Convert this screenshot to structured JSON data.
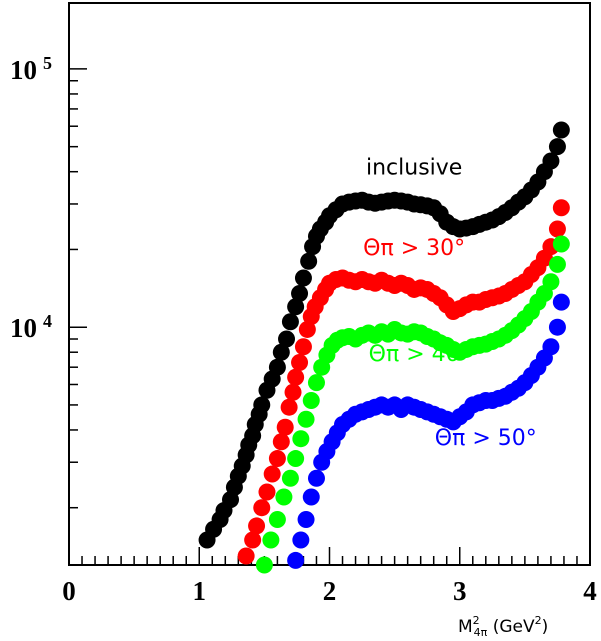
{
  "chart_data": {
    "type": "scatter",
    "xlim": [
      0,
      4
    ],
    "ylim": [
      1200,
      180000
    ],
    "yscale": "log",
    "x_ticks": [
      0,
      1,
      2,
      3,
      4
    ],
    "y_tick_labels": [
      {
        "value": 10000,
        "base": "10",
        "exp": "4"
      },
      {
        "value": 100000,
        "base": "10",
        "exp": "5"
      }
    ],
    "xlabel": {
      "base": "M",
      "sup": "2",
      "sub": "4π",
      "unit": "(GeV",
      "unit_sup": "2",
      "unit_close": ")"
    },
    "grid": false,
    "series": [
      {
        "name": "inclusive",
        "color": "#000000",
        "label_color": "#000000",
        "x": [
          1.06,
          1.11,
          1.16,
          1.19,
          1.24,
          1.27,
          1.3,
          1.33,
          1.36,
          1.38,
          1.41,
          1.43,
          1.46,
          1.48,
          1.52,
          1.56,
          1.6,
          1.63,
          1.67,
          1.7,
          1.74,
          1.77,
          1.8,
          1.84,
          1.87,
          1.9,
          1.93,
          1.97,
          2.0,
          2.05,
          2.1,
          2.15,
          2.2,
          2.25,
          2.3,
          2.35,
          2.4,
          2.45,
          2.5,
          2.55,
          2.6,
          2.65,
          2.7,
          2.75,
          2.8,
          2.85,
          2.9,
          2.95,
          3.0,
          3.05,
          3.1,
          3.15,
          3.2,
          3.25,
          3.3,
          3.35,
          3.4,
          3.45,
          3.5,
          3.55,
          3.6,
          3.65,
          3.7,
          3.75,
          3.78
        ],
        "y": [
          1500,
          1650,
          1800,
          1950,
          2150,
          2400,
          2650,
          2900,
          3200,
          3500,
          3800,
          4200,
          4600,
          5000,
          5700,
          6300,
          7000,
          8000,
          9000,
          10500,
          12000,
          13500,
          15500,
          18000,
          20500,
          22500,
          24000,
          25500,
          27000,
          28500,
          30000,
          30500,
          30800,
          31000,
          30500,
          30200,
          30500,
          30800,
          31000,
          30800,
          30500,
          30000,
          29800,
          29500,
          29000,
          27500,
          25500,
          24500,
          24000,
          24200,
          24500,
          25000,
          25500,
          26000,
          26800,
          27800,
          29000,
          30500,
          32000,
          34000,
          36500,
          40000,
          44000,
          50000,
          58000
        ]
      },
      {
        "name": "Θπ > 30°",
        "color": "#ff0000",
        "label_color": "#ff0000",
        "x": [
          1.36,
          1.41,
          1.44,
          1.48,
          1.52,
          1.56,
          1.6,
          1.63,
          1.66,
          1.69,
          1.72,
          1.74,
          1.77,
          1.8,
          1.83,
          1.86,
          1.89,
          1.93,
          1.97,
          2.0,
          2.05,
          2.1,
          2.15,
          2.2,
          2.25,
          2.3,
          2.35,
          2.4,
          2.45,
          2.5,
          2.55,
          2.6,
          2.65,
          2.7,
          2.75,
          2.8,
          2.85,
          2.9,
          2.95,
          3.0,
          3.05,
          3.1,
          3.15,
          3.2,
          3.25,
          3.3,
          3.35,
          3.4,
          3.45,
          3.5,
          3.55,
          3.6,
          3.65,
          3.7,
          3.75,
          3.78
        ],
        "y": [
          1300,
          1500,
          1700,
          2000,
          2300,
          2700,
          3100,
          3600,
          4100,
          4900,
          5600,
          6400,
          7300,
          8400,
          9800,
          11000,
          12000,
          13000,
          14000,
          14800,
          15300,
          15500,
          15200,
          15000,
          15300,
          15000,
          14800,
          15200,
          14800,
          14500,
          14800,
          14500,
          14000,
          14200,
          14000,
          13500,
          13000,
          12200,
          11500,
          11800,
          12200,
          12500,
          12500,
          12800,
          13000,
          13200,
          13500,
          14000,
          14500,
          15000,
          16000,
          17000,
          18500,
          20500,
          24000,
          29000
        ]
      },
      {
        "name": "Θπ > 40",
        "color": "#00ff00",
        "label_color": "#00ff00",
        "x": [
          1.5,
          1.55,
          1.6,
          1.65,
          1.7,
          1.74,
          1.78,
          1.82,
          1.86,
          1.9,
          1.94,
          1.98,
          2.02,
          2.06,
          2.1,
          2.15,
          2.2,
          2.25,
          2.3,
          2.35,
          2.4,
          2.45,
          2.5,
          2.55,
          2.6,
          2.65,
          2.7,
          2.75,
          2.8,
          2.85,
          2.9,
          2.95,
          3.0,
          3.05,
          3.1,
          3.15,
          3.2,
          3.25,
          3.3,
          3.35,
          3.4,
          3.45,
          3.5,
          3.55,
          3.6,
          3.65,
          3.7,
          3.75,
          3.78
        ],
        "y": [
          1200,
          1500,
          1800,
          2200,
          2600,
          3100,
          3700,
          4400,
          5200,
          6100,
          7000,
          7800,
          8500,
          8900,
          9100,
          9200,
          9000,
          9300,
          9500,
          9300,
          9600,
          9400,
          9800,
          9500,
          9400,
          9600,
          9500,
          9200,
          9000,
          8700,
          8500,
          8200,
          8000,
          8200,
          8400,
          8500,
          8600,
          8800,
          9000,
          9300,
          9700,
          10200,
          10800,
          11500,
          12500,
          13500,
          15000,
          17500,
          21000
        ]
      },
      {
        "name": "Θπ > 50°",
        "color": "#0000ff",
        "label_color": "#0000ff",
        "x": [
          1.74,
          1.78,
          1.82,
          1.86,
          1.9,
          1.94,
          1.98,
          2.02,
          2.06,
          2.1,
          2.15,
          2.2,
          2.25,
          2.3,
          2.35,
          2.4,
          2.45,
          2.5,
          2.55,
          2.6,
          2.65,
          2.7,
          2.75,
          2.8,
          2.85,
          2.9,
          2.95,
          3.0,
          3.05,
          3.1,
          3.15,
          3.2,
          3.25,
          3.3,
          3.35,
          3.4,
          3.45,
          3.5,
          3.55,
          3.6,
          3.65,
          3.7,
          3.75,
          3.78
        ],
        "y": [
          1250,
          1500,
          1800,
          2200,
          2600,
          3000,
          3300,
          3600,
          3900,
          4200,
          4400,
          4600,
          4700,
          4800,
          4900,
          5000,
          4900,
          5000,
          4800,
          5000,
          4900,
          4800,
          4700,
          4600,
          4500,
          4400,
          4300,
          4500,
          4700,
          5000,
          5100,
          5200,
          5200,
          5300,
          5400,
          5600,
          5800,
          6100,
          6500,
          7000,
          7600,
          8400,
          10000,
          12500
        ]
      }
    ],
    "labels": [
      {
        "text": "inclusive",
        "color": "#000000",
        "x": 2.65,
        "y": 39000
      },
      {
        "text": "Θπ > 30°",
        "color": "#ff0000",
        "x": 2.65,
        "y": 19000
      },
      {
        "text": "Θπ > 40",
        "color": "#00ff00",
        "x": 2.65,
        "y": 7400
      },
      {
        "text": "Θπ > 50°",
        "color": "#0000ff",
        "x": 3.2,
        "y": 3500
      }
    ]
  }
}
